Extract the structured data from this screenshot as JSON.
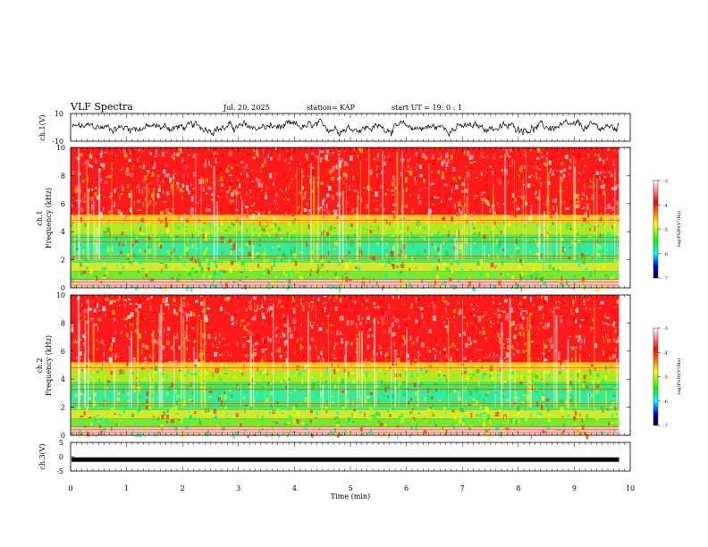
{
  "header": {
    "title": "VLF Spectra",
    "date": "Jul. 20, 2025",
    "station": "station= KAP",
    "start_ut": "start UT =  19: 0 : 1"
  },
  "chart_data": [
    {
      "type": "line",
      "name": "ch1-waveform",
      "ylabel": "ch.1(V)",
      "ylim": [
        -10,
        10
      ],
      "yticks": [
        "10",
        "-10"
      ],
      "color": "#000000",
      "description_range": [
        -5,
        5
      ]
    },
    {
      "type": "heatmap",
      "name": "ch1-spectrogram",
      "ylabel_line1": "ch.1",
      "ylabel_line2": "Frequency (kHz)",
      "ylim": [
        0,
        10
      ],
      "yticks": [
        "0",
        "2",
        "4",
        "6",
        "8",
        "10"
      ],
      "colorbar": {
        "label": "log(PSD)(V²/Hz)",
        "range": [
          -7,
          -3
        ],
        "ticks": [
          "-3",
          "-4",
          "-5",
          "-6",
          "-7"
        ],
        "colors": [
          "#ffffff",
          "#ff0000",
          "#ffff00",
          "#00ff00",
          "#00ffff",
          "#0000ff",
          "#000000"
        ]
      }
    },
    {
      "type": "heatmap",
      "name": "ch2-spectrogram",
      "ylabel_line1": "ch.2",
      "ylabel_line2": "Frequency (kHz)",
      "ylim": [
        0,
        10
      ],
      "yticks": [
        "0",
        "2",
        "4",
        "6",
        "8",
        "10"
      ],
      "colorbar": {
        "label": "log(PSD)(V²/Hz)",
        "range": [
          -7,
          -3
        ],
        "ticks": [
          "-3",
          "-4",
          "-5",
          "-6",
          "-7"
        ],
        "colors": [
          "#ffffff",
          "#ff0000",
          "#ffff00",
          "#00ff00",
          "#00ffff",
          "#0000ff",
          "#000000"
        ]
      }
    },
    {
      "type": "line",
      "name": "ch3-waveform",
      "ylabel": "ch.3(V)",
      "ylim": [
        -5,
        5
      ],
      "yticks": [
        "5",
        "0",
        "-5"
      ],
      "color": "#000000",
      "constant_value": -1
    }
  ],
  "x_axis": {
    "label": "Time (min)",
    "range": [
      0,
      10
    ],
    "data_end": 9.8,
    "ticks": [
      "0",
      "1",
      "2",
      "3",
      "4",
      "5",
      "6",
      "7",
      "8",
      "9",
      "10"
    ]
  }
}
